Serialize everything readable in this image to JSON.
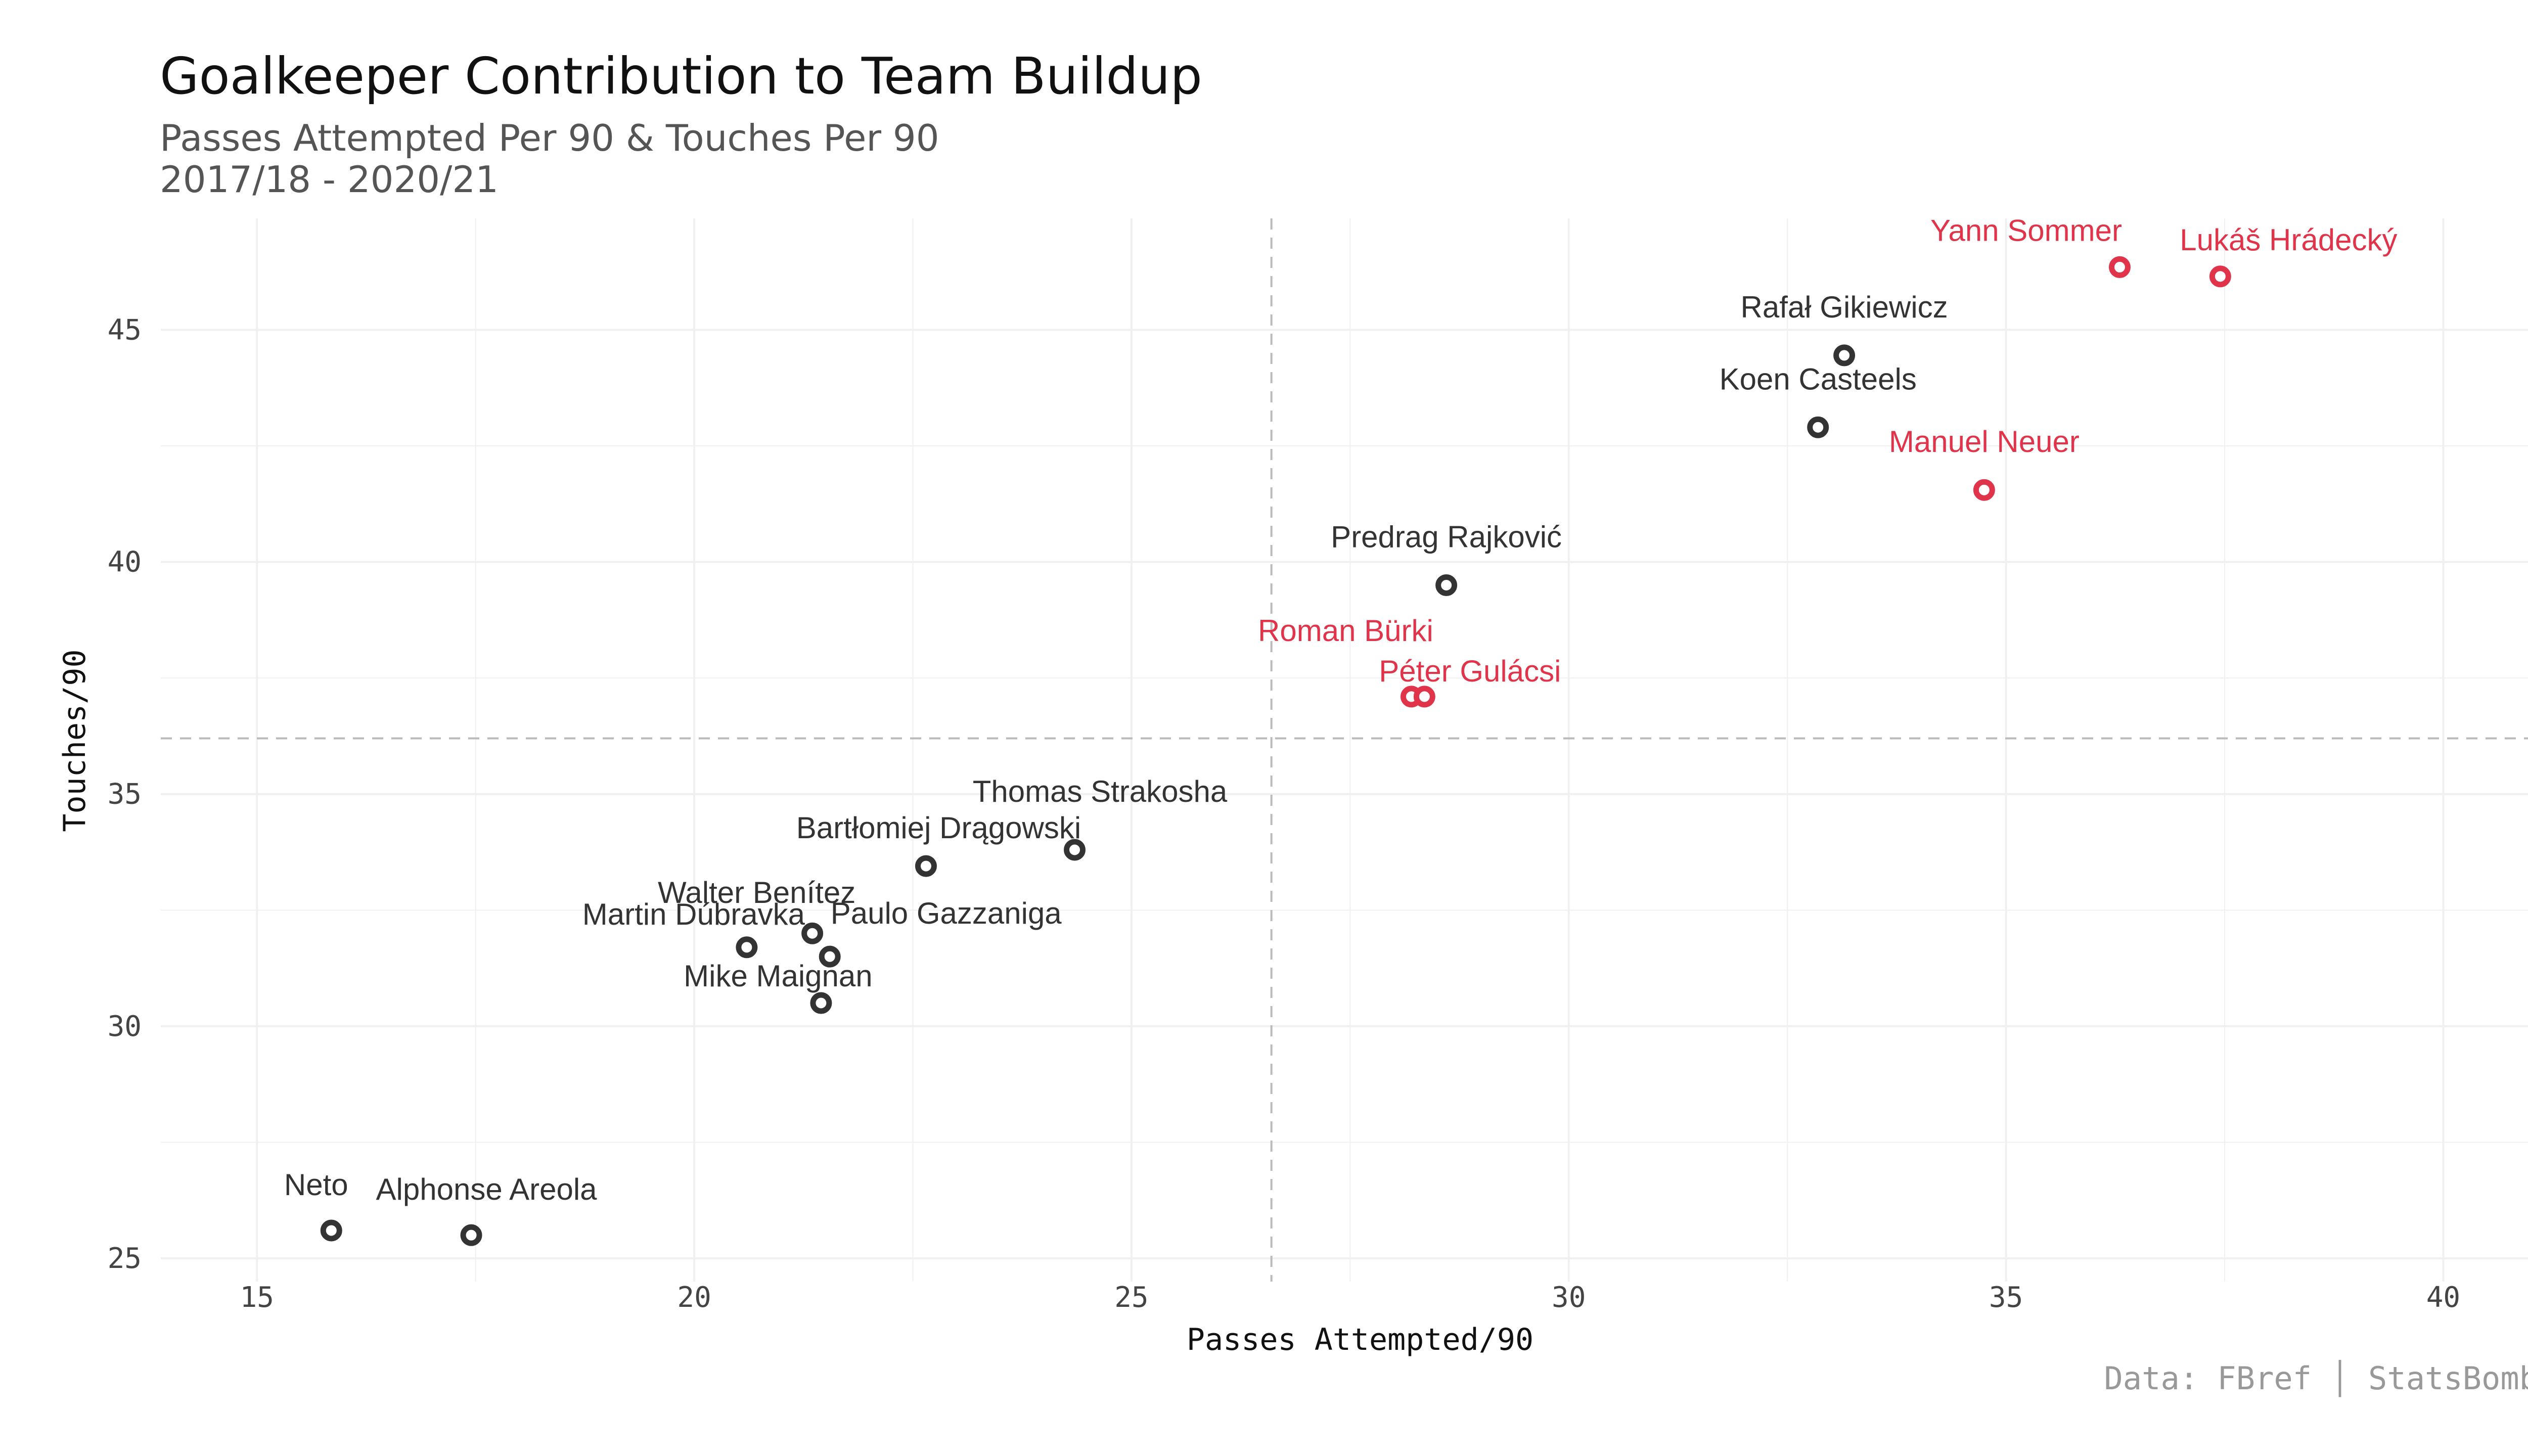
{
  "chart_data": {
    "type": "scatter",
    "title": "Goalkeeper Contribution to Team Buildup",
    "subtitle_line1": "Passes Attempted Per 90 & Touches Per 90",
    "subtitle_line2": "2017/18 - 2020/21",
    "xlabel": "Passes Attempted/90",
    "ylabel": "Touches/90",
    "caption": "Data: FBref │ StatsBomb",
    "xlim": [
      13.9,
      41.2
    ],
    "ylim": [
      24.5,
      47.4
    ],
    "xticks": [
      15,
      20,
      25,
      30,
      35,
      40
    ],
    "yticks": [
      25,
      30,
      35,
      40,
      45
    ],
    "grid": true,
    "reference_lines": {
      "x": 26.6,
      "y": 36.2
    },
    "colors": {
      "highlight": "#e0344a",
      "default": "#333333"
    },
    "points": [
      {
        "name": "Yann Sommer",
        "x": 36.3,
        "y": 46.35,
        "highlight": true
      },
      {
        "name": "Lukáš Hrádecký",
        "x": 37.45,
        "y": 46.15,
        "highlight": true
      },
      {
        "name": "Rafał Gikiewicz",
        "x": 33.15,
        "y": 44.45,
        "highlight": false
      },
      {
        "name": "Koen Casteels",
        "x": 32.85,
        "y": 42.9,
        "highlight": false
      },
      {
        "name": "Manuel Neuer",
        "x": 34.75,
        "y": 41.55,
        "highlight": true
      },
      {
        "name": "Predrag Rajković",
        "x": 28.6,
        "y": 39.5,
        "highlight": false
      },
      {
        "name": "Roman Bürki",
        "x": 28.2,
        "y": 37.1,
        "highlight": true
      },
      {
        "name": "Péter Gulácsi",
        "x": 28.35,
        "y": 37.1,
        "highlight": true
      },
      {
        "name": "Thomas Strakosha",
        "x": 24.35,
        "y": 33.8,
        "highlight": false
      },
      {
        "name": "Bartłomiej Drągowski",
        "x": 22.65,
        "y": 33.45,
        "highlight": false
      },
      {
        "name": "Walter Benítez",
        "x": 21.35,
        "y": 32.0,
        "highlight": false
      },
      {
        "name": "Martin Dúbravka",
        "x": 20.6,
        "y": 31.7,
        "highlight": false
      },
      {
        "name": "Paulo Gazzaniga",
        "x": 21.55,
        "y": 31.5,
        "highlight": false
      },
      {
        "name": "Mike Maignan",
        "x": 21.45,
        "y": 30.5,
        "highlight": false
      },
      {
        "name": "Neto",
        "x": 15.85,
        "y": 25.6,
        "highlight": false
      },
      {
        "name": "Alphonse Areola",
        "x": 17.45,
        "y": 25.5,
        "highlight": false
      }
    ]
  }
}
